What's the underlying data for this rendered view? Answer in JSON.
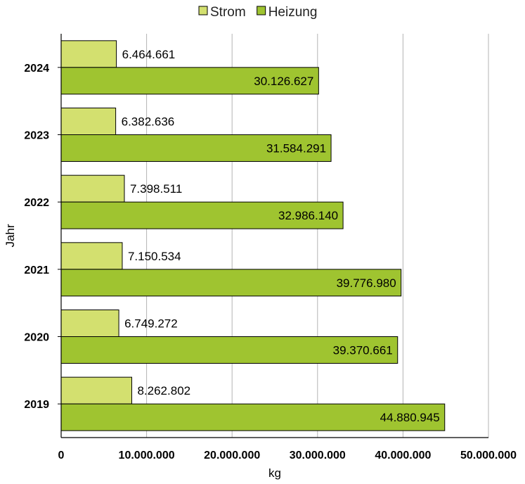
{
  "chart_data": {
    "type": "bar",
    "orientation": "horizontal",
    "title": "",
    "xlabel": "kg",
    "ylabel": "Jahr",
    "xlim": [
      0,
      50000000
    ],
    "x_ticks": [
      0,
      10000000,
      20000000,
      30000000,
      40000000,
      50000000
    ],
    "x_tick_labels": [
      "0",
      "10.000.000",
      "20.000.000",
      "30.000.000",
      "40.000.000",
      "50.000.000"
    ],
    "grid": "vertical",
    "legend": "top-right",
    "categories": [
      "2024",
      "2023",
      "2022",
      "2021",
      "2020",
      "2019"
    ],
    "series": [
      {
        "name": "Strom",
        "color": "#d3e06f",
        "values": [
          6464661,
          6382636,
          7398511,
          7150534,
          6749272,
          8262802
        ],
        "labels": [
          "6.464.661",
          "6.382.636",
          "7.398.511",
          "7.150.534",
          "6.749.272",
          "8.262.802"
        ]
      },
      {
        "name": "Heizung",
        "color": "#9fc430",
        "values": [
          30126627,
          31584291,
          32986140,
          39776980,
          39370661,
          44880945
        ],
        "labels": [
          "30.126.627",
          "31.584.291",
          "32.986.140",
          "39.776.980",
          "39.370.661",
          "44.880.945"
        ]
      }
    ]
  }
}
